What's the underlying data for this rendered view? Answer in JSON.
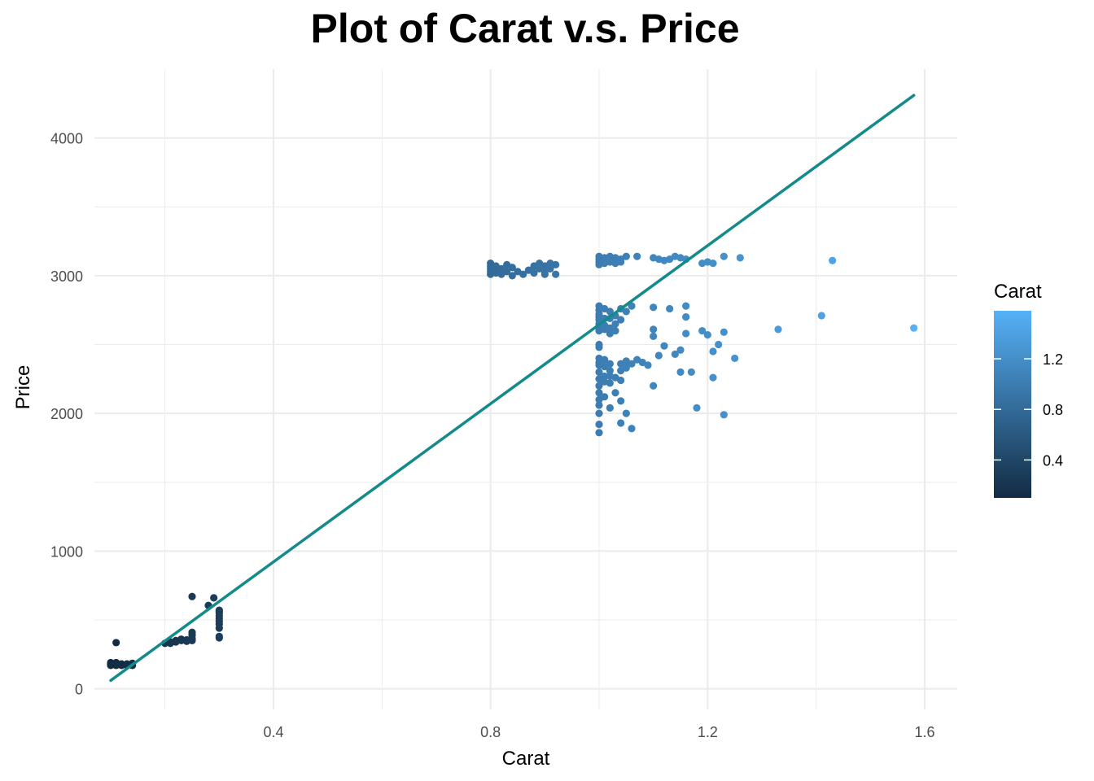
{
  "chart_data": {
    "type": "scatter",
    "title": "Plot of Carat v.s. Price",
    "xlabel": "Carat",
    "ylabel": "Price",
    "xlim": [
      0.07,
      1.66
    ],
    "ylim": [
      -150,
      4500
    ],
    "x_ticks": [
      0.4,
      0.8,
      1.2,
      1.6
    ],
    "x_tick_labels": [
      "0.4",
      "0.8",
      "1.2",
      "1.6"
    ],
    "y_ticks": [
      0,
      1000,
      2000,
      3000,
      4000
    ],
    "y_tick_labels": [
      "0",
      "1000",
      "2000",
      "3000",
      "4000"
    ],
    "grid": true,
    "colors": {
      "low": "#132B43",
      "high": "#56B1F7",
      "fit_line": "#148A8A",
      "grid": "#ebebeb"
    },
    "legend": {
      "title": "Carat",
      "position": "right",
      "range": [
        0.1,
        1.58
      ],
      "ticks": [
        0.4,
        0.8,
        1.2
      ],
      "tick_labels": [
        "0.4",
        "0.8",
        "1.2"
      ]
    },
    "fit_line": {
      "x": [
        0.1,
        1.58
      ],
      "y": [
        60,
        4310
      ]
    },
    "points": [
      [
        0.1,
        170
      ],
      [
        0.1,
        180
      ],
      [
        0.1,
        190
      ],
      [
        0.11,
        170
      ],
      [
        0.11,
        190
      ],
      [
        0.12,
        180
      ],
      [
        0.12,
        170
      ],
      [
        0.13,
        180
      ],
      [
        0.13,
        170
      ],
      [
        0.14,
        185
      ],
      [
        0.14,
        170
      ],
      [
        0.11,
        335
      ],
      [
        0.2,
        330
      ],
      [
        0.21,
        340
      ],
      [
        0.21,
        330
      ],
      [
        0.22,
        340
      ],
      [
        0.22,
        350
      ],
      [
        0.23,
        360
      ],
      [
        0.23,
        350
      ],
      [
        0.24,
        355
      ],
      [
        0.24,
        345
      ],
      [
        0.25,
        350
      ],
      [
        0.25,
        365
      ],
      [
        0.25,
        410
      ],
      [
        0.25,
        390
      ],
      [
        0.25,
        670
      ],
      [
        0.28,
        605
      ],
      [
        0.29,
        660
      ],
      [
        0.3,
        380
      ],
      [
        0.3,
        370
      ],
      [
        0.3,
        440
      ],
      [
        0.3,
        470
      ],
      [
        0.3,
        490
      ],
      [
        0.3,
        510
      ],
      [
        0.3,
        530
      ],
      [
        0.3,
        550
      ],
      [
        0.3,
        560
      ],
      [
        0.3,
        570
      ],
      [
        0.8,
        3010
      ],
      [
        0.8,
        3030
      ],
      [
        0.8,
        3050
      ],
      [
        0.8,
        3070
      ],
      [
        0.8,
        3090
      ],
      [
        0.81,
        3020
      ],
      [
        0.81,
        3040
      ],
      [
        0.81,
        3070
      ],
      [
        0.82,
        3010
      ],
      [
        0.82,
        3050
      ],
      [
        0.83,
        3030
      ],
      [
        0.83,
        3080
      ],
      [
        0.84,
        3000
      ],
      [
        0.84,
        3060
      ],
      [
        0.85,
        3030
      ],
      [
        0.86,
        3010
      ],
      [
        0.87,
        3040
      ],
      [
        0.88,
        3020
      ],
      [
        0.88,
        3070
      ],
      [
        0.89,
        3050
      ],
      [
        0.89,
        3090
      ],
      [
        0.9,
        3010
      ],
      [
        0.9,
        3030
      ],
      [
        0.9,
        3070
      ],
      [
        0.91,
        3050
      ],
      [
        0.91,
        3090
      ],
      [
        0.92,
        3010
      ],
      [
        0.92,
        3080
      ],
      [
        1.0,
        3080
      ],
      [
        1.0,
        3100
      ],
      [
        1.0,
        3120
      ],
      [
        1.0,
        3140
      ],
      [
        1.01,
        3090
      ],
      [
        1.01,
        3130
      ],
      [
        1.02,
        3100
      ],
      [
        1.02,
        3120
      ],
      [
        1.02,
        3140
      ],
      [
        1.03,
        3090
      ],
      [
        1.03,
        3130
      ],
      [
        1.04,
        3100
      ],
      [
        1.04,
        3120
      ],
      [
        1.05,
        3140
      ],
      [
        1.07,
        3140
      ],
      [
        1.1,
        3130
      ],
      [
        1.11,
        3120
      ],
      [
        1.12,
        3110
      ],
      [
        1.13,
        3120
      ],
      [
        1.14,
        3140
      ],
      [
        1.15,
        3130
      ],
      [
        1.16,
        3120
      ],
      [
        1.19,
        3090
      ],
      [
        1.2,
        3100
      ],
      [
        1.21,
        3090
      ],
      [
        1.23,
        3140
      ],
      [
        1.26,
        3130
      ],
      [
        1.43,
        3110
      ],
      [
        1.0,
        2780
      ],
      [
        1.0,
        2750
      ],
      [
        1.0,
        2720
      ],
      [
        1.0,
        2700
      ],
      [
        1.0,
        2680
      ],
      [
        1.0,
        2650
      ],
      [
        1.0,
        2620
      ],
      [
        1.0,
        2600
      ],
      [
        1.0,
        2500
      ],
      [
        1.0,
        2480
      ],
      [
        1.0,
        2400
      ],
      [
        1.0,
        2370
      ],
      [
        1.0,
        2350
      ],
      [
        1.0,
        2300
      ],
      [
        1.0,
        2250
      ],
      [
        1.0,
        2200
      ],
      [
        1.0,
        2150
      ],
      [
        1.0,
        2100
      ],
      [
        1.0,
        2060
      ],
      [
        1.0,
        2000
      ],
      [
        1.0,
        1920
      ],
      [
        1.0,
        1860
      ],
      [
        1.01,
        2760
      ],
      [
        1.01,
        2690
      ],
      [
        1.01,
        2640
      ],
      [
        1.01,
        2610
      ],
      [
        1.01,
        2390
      ],
      [
        1.01,
        2340
      ],
      [
        1.01,
        2270
      ],
      [
        1.01,
        2230
      ],
      [
        1.01,
        2120
      ],
      [
        1.02,
        2740
      ],
      [
        1.02,
        2690
      ],
      [
        1.02,
        2620
      ],
      [
        1.02,
        2580
      ],
      [
        1.02,
        2360
      ],
      [
        1.02,
        2310
      ],
      [
        1.02,
        2270
      ],
      [
        1.02,
        2220
      ],
      [
        1.02,
        2040
      ],
      [
        1.03,
        2710
      ],
      [
        1.03,
        2650
      ],
      [
        1.03,
        2600
      ],
      [
        1.03,
        2260
      ],
      [
        1.03,
        2150
      ],
      [
        1.04,
        2760
      ],
      [
        1.04,
        2680
      ],
      [
        1.04,
        2360
      ],
      [
        1.04,
        2310
      ],
      [
        1.04,
        2240
      ],
      [
        1.04,
        2090
      ],
      [
        1.04,
        1930
      ],
      [
        1.05,
        2740
      ],
      [
        1.05,
        2380
      ],
      [
        1.05,
        2360
      ],
      [
        1.05,
        2330
      ],
      [
        1.05,
        2000
      ],
      [
        1.06,
        2780
      ],
      [
        1.06,
        2360
      ],
      [
        1.06,
        1890
      ],
      [
        1.07,
        2390
      ],
      [
        1.08,
        2370
      ],
      [
        1.09,
        2350
      ],
      [
        1.1,
        2770
      ],
      [
        1.1,
        2610
      ],
      [
        1.1,
        2560
      ],
      [
        1.1,
        2200
      ],
      [
        1.11,
        2420
      ],
      [
        1.12,
        2490
      ],
      [
        1.13,
        2760
      ],
      [
        1.14,
        2430
      ],
      [
        1.15,
        2460
      ],
      [
        1.15,
        2300
      ],
      [
        1.16,
        2780
      ],
      [
        1.16,
        2700
      ],
      [
        1.16,
        2580
      ],
      [
        1.17,
        2300
      ],
      [
        1.18,
        2040
      ],
      [
        1.19,
        2600
      ],
      [
        1.2,
        2570
      ],
      [
        1.21,
        2450
      ],
      [
        1.21,
        2260
      ],
      [
        1.22,
        2500
      ],
      [
        1.23,
        2590
      ],
      [
        1.23,
        1990
      ],
      [
        1.25,
        2400
      ],
      [
        1.33,
        2610
      ],
      [
        1.41,
        2710
      ],
      [
        1.58,
        2620
      ]
    ]
  }
}
